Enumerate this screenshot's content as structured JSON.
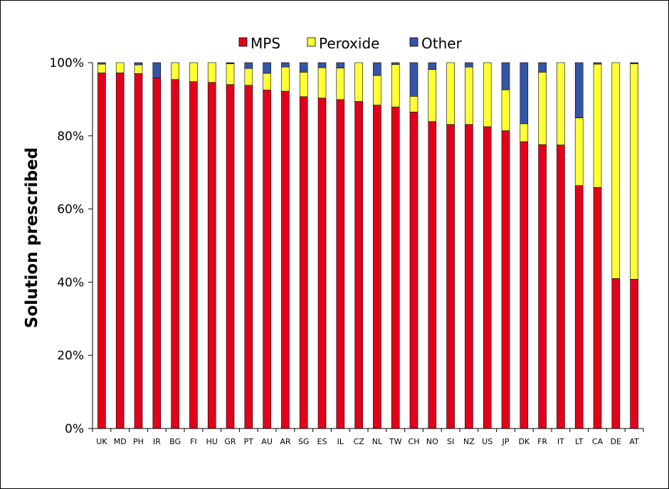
{
  "chart_data": {
    "type": "bar",
    "stacked": true,
    "percent": true,
    "title": "",
    "xlabel": "",
    "ylabel": "Solution prescribed",
    "ylim": [
      0,
      100
    ],
    "yticks": [
      "0%",
      "20%",
      "40%",
      "60%",
      "80%",
      "100%"
    ],
    "yticks_values": [
      0,
      20,
      40,
      60,
      80,
      100
    ],
    "grid": false,
    "legend_position": "top-center",
    "categories": [
      "UK",
      "MD",
      "PH",
      "IR",
      "BG",
      "FI",
      "HU",
      "GR",
      "PT",
      "AU",
      "AR",
      "SG",
      "ES",
      "IL",
      "CZ",
      "NL",
      "TW",
      "CH",
      "NO",
      "SI",
      "NZ",
      "US",
      "JP",
      "DK",
      "FR",
      "IT",
      "LT",
      "CA",
      "DE",
      "AT"
    ],
    "series": [
      {
        "name": "MPS",
        "color": "#E2001A",
        "values": [
          97.2,
          97.2,
          97.0,
          95.8,
          95.4,
          94.8,
          94.6,
          94.0,
          93.8,
          92.5,
          92.2,
          90.7,
          90.3,
          89.9,
          89.4,
          88.4,
          87.9,
          86.5,
          83.9,
          83.1,
          83.1,
          82.5,
          81.4,
          78.4,
          77.6,
          77.5,
          66.4,
          65.9,
          41.0,
          40.8
        ]
      },
      {
        "name": "Peroxide",
        "color": "#FFFF33",
        "values": [
          2.4,
          2.8,
          2.4,
          0.0,
          4.6,
          5.2,
          5.4,
          5.7,
          4.6,
          4.6,
          6.6,
          6.7,
          8.3,
          8.6,
          10.6,
          8.1,
          11.6,
          4.3,
          14.2,
          16.9,
          15.7,
          17.5,
          11.2,
          4.9,
          19.8,
          22.5,
          18.5,
          33.7,
          59.0,
          58.9
        ]
      },
      {
        "name": "Other",
        "color": "#3455A8",
        "values": [
          0.4,
          0.0,
          0.6,
          4.2,
          0.0,
          0.0,
          0.0,
          0.3,
          1.6,
          2.9,
          1.2,
          2.6,
          1.4,
          1.5,
          0.0,
          3.5,
          0.5,
          9.2,
          1.9,
          0.0,
          1.2,
          0.0,
          7.4,
          16.7,
          2.6,
          0.0,
          15.1,
          0.4,
          0.0,
          0.3
        ]
      }
    ]
  }
}
